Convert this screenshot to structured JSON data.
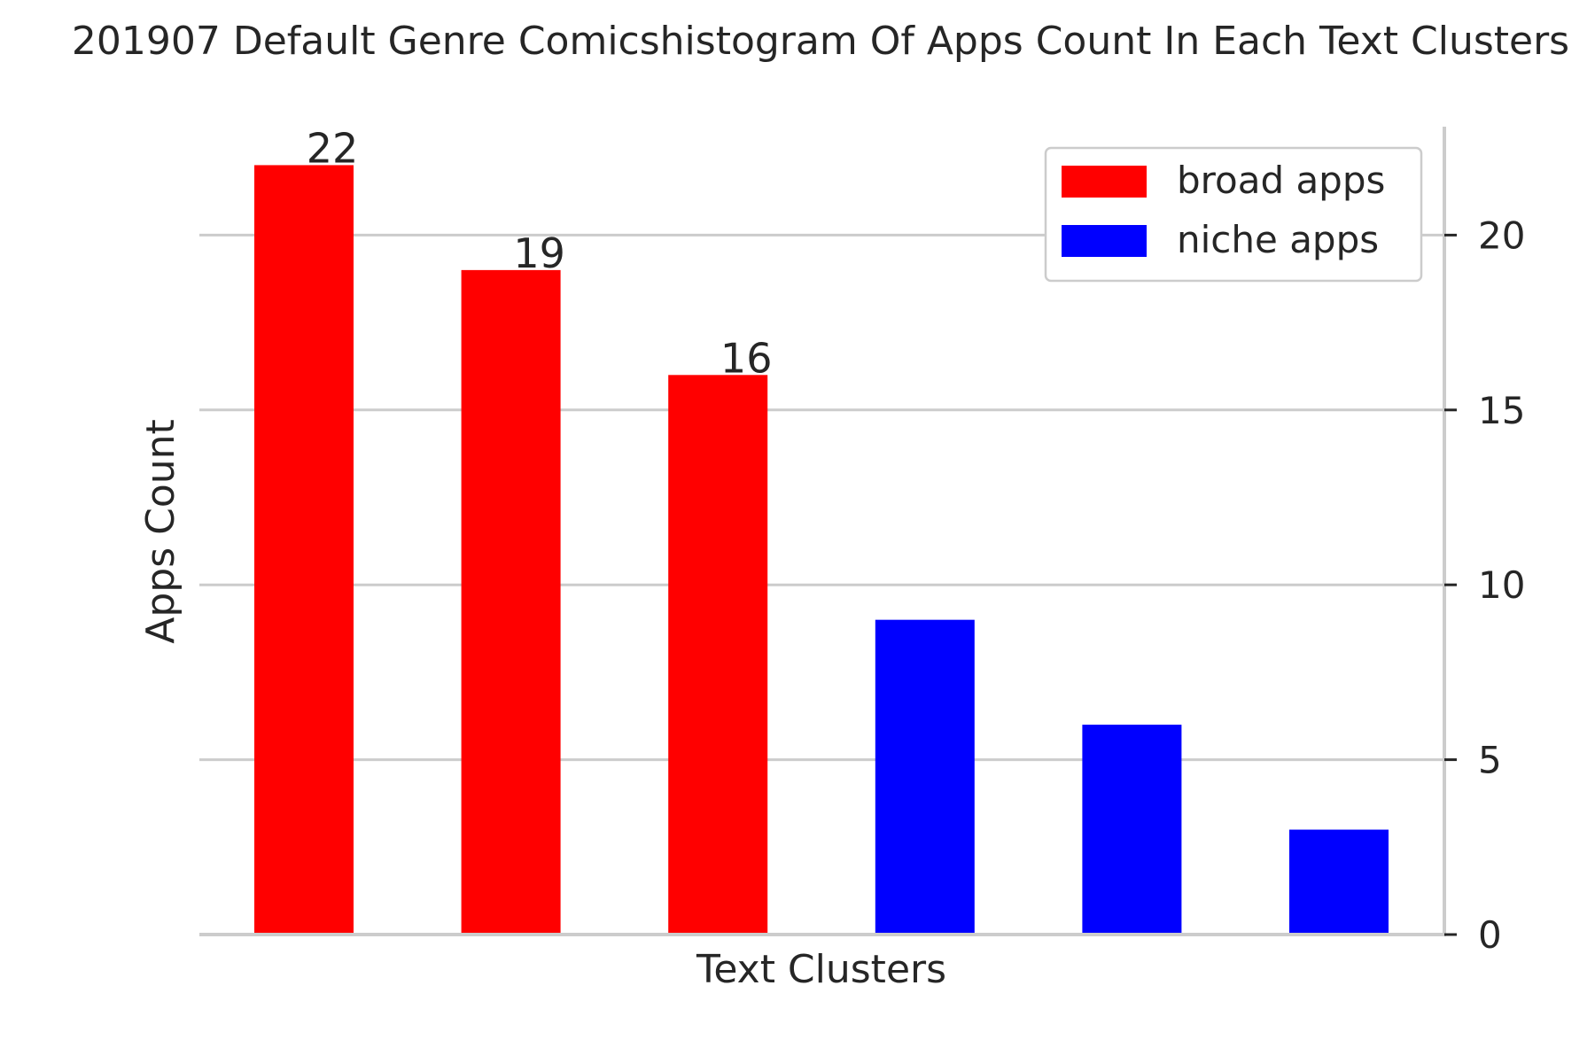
{
  "chart_data": {
    "type": "bar",
    "title": "201907 Default Genre Comicshistogram Of Apps Count In Each Text Clusters",
    "xlabel": "Text Clusters",
    "ylabel": "Apps Count",
    "ylim": [
      0,
      23.1
    ],
    "yticks": [
      "0",
      "5",
      "10",
      "15",
      "20"
    ],
    "y_axis_side": "right",
    "grid": "horizontal",
    "legend_position": "top-right",
    "series": [
      {
        "name": "broad apps",
        "color": "#ff0000",
        "values": [
          22,
          19,
          16
        ],
        "data_labels": [
          "22",
          "19",
          "16"
        ]
      },
      {
        "name": "niche apps",
        "color": "#0000ff",
        "values": [
          9,
          6,
          3
        ],
        "data_labels": []
      }
    ]
  }
}
